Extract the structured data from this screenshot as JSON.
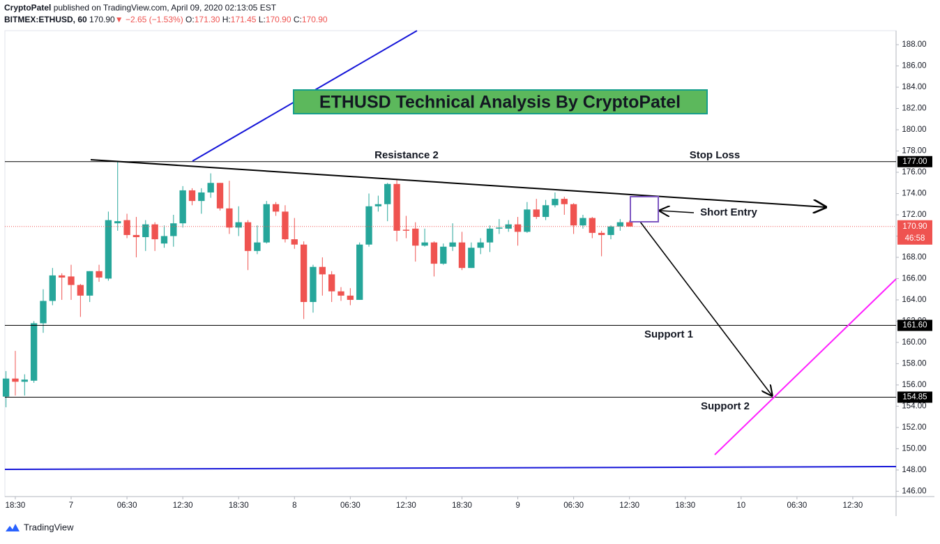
{
  "header": {
    "author": "CryptoPatel",
    "published": "published on TradingView.com, April 09, 2020 02:13:05 EST",
    "symbol": "BITMEX:ETHUSD, 60",
    "last": "170.90",
    "direction": "▼",
    "change": "−2.65 (−1.53%)",
    "o_label": "O:",
    "open": "171.30",
    "h_label": "H:",
    "high": "171.45",
    "l_label": "L:",
    "low": "170.90",
    "c_label": "C:",
    "close": "170.90"
  },
  "footer": {
    "brand": "TradingView"
  },
  "chart_data": {
    "type": "candlestick",
    "up_color": "#26a69a",
    "down_color": "#ef5350",
    "x": [
      -7,
      -6,
      -5,
      -4,
      -3,
      -2,
      -1,
      0,
      1,
      2,
      3,
      4,
      5,
      6,
      7,
      8,
      9,
      10,
      11,
      12,
      13,
      14,
      15,
      16,
      17,
      18,
      19,
      20,
      21,
      22,
      23,
      24,
      25,
      26,
      27,
      28,
      29,
      30,
      31,
      32,
      33,
      34,
      35,
      36,
      37,
      38,
      39,
      40,
      41,
      42,
      43,
      44,
      45,
      46,
      47,
      48,
      49,
      50,
      51,
      52,
      53,
      54,
      55,
      56,
      57,
      58,
      59,
      60
    ],
    "open": [
      154.9,
      156.6,
      156.3,
      156.4,
      161.8,
      163.9,
      166.3,
      166.2,
      165.4,
      164.4,
      166.7,
      166.0,
      171.2,
      171.5,
      170.1,
      169.9,
      171.1,
      169.3,
      170.0,
      171.2,
      174.3,
      173.3,
      174.1,
      175.0,
      172.6,
      170.8,
      171.3,
      168.6,
      169.4,
      173.0,
      172.3,
      169.7,
      169.2,
      163.8,
      167.1,
      166.4,
      164.8,
      164.4,
      164.0,
      169.2,
      172.8,
      173.0,
      174.9,
      170.6,
      170.7,
      169.1,
      169.4,
      167.4,
      169.0,
      169.4,
      167.0,
      168.9,
      169.4,
      170.7,
      170.7,
      171.1,
      170.4,
      172.5,
      171.8,
      172.9,
      173.5,
      173.0,
      171.0,
      171.7,
      170.3,
      170.1,
      170.9,
      171.3
    ],
    "high": [
      157.3,
      159.2,
      157.0,
      162.0,
      165.0,
      167.0,
      166.5,
      167.3,
      165.5,
      166.7,
      167.3,
      172.3,
      177.0,
      172.1,
      171.8,
      171.5,
      171.3,
      171.0,
      172.0,
      174.7,
      174.5,
      174.5,
      175.9,
      175.0,
      175.2,
      172.8,
      171.5,
      171.0,
      173.3,
      173.2,
      172.9,
      171.7,
      169.5,
      167.3,
      168.0,
      166.7,
      165.2,
      165.1,
      169.4,
      174.0,
      173.8,
      175.0,
      175.3,
      171.9,
      171.3,
      170.7,
      169.5,
      169.3,
      171.2,
      170.4,
      169.4,
      169.8,
      171.0,
      171.6,
      171.5,
      171.8,
      173.2,
      173.5,
      173.4,
      174.1,
      173.7,
      173.1,
      172.0,
      171.8,
      170.5,
      171.0,
      171.6,
      171.45
    ],
    "low": [
      153.9,
      155.0,
      155.0,
      156.2,
      160.9,
      163.5,
      164.0,
      164.0,
      162.4,
      163.8,
      165.7,
      165.8,
      170.5,
      169.8,
      168.0,
      168.6,
      168.6,
      168.9,
      169.0,
      170.8,
      172.9,
      172.1,
      173.6,
      172.4,
      170.2,
      170.0,
      166.8,
      168.3,
      169.3,
      171.9,
      169.4,
      168.8,
      162.2,
      162.8,
      164.4,
      163.8,
      163.9,
      163.5,
      164.0,
      169.0,
      172.3,
      171.4,
      169.5,
      169.8,
      167.6,
      169.0,
      166.2,
      167.3,
      168.6,
      166.8,
      167.0,
      168.3,
      168.5,
      170.2,
      170.4,
      169.1,
      170.3,
      171.6,
      171.5,
      172.7,
      172.0,
      170.2,
      170.7,
      169.8,
      168.1,
      169.7,
      170.5,
      170.9
    ],
    "close": [
      156.6,
      156.3,
      156.5,
      161.8,
      163.9,
      166.3,
      166.1,
      165.4,
      164.4,
      166.7,
      166.1,
      171.5,
      171.4,
      170.1,
      169.9,
      171.1,
      169.7,
      170.0,
      171.2,
      174.3,
      173.3,
      174.1,
      175.0,
      172.6,
      170.8,
      171.3,
      168.6,
      169.4,
      173.0,
      172.3,
      169.7,
      169.2,
      163.8,
      167.1,
      166.4,
      164.8,
      164.4,
      164.0,
      169.2,
      172.8,
      173.0,
      174.9,
      170.5,
      170.5,
      169.1,
      169.4,
      167.4,
      169.0,
      169.4,
      167.0,
      168.9,
      169.4,
      170.7,
      170.8,
      171.1,
      170.4,
      172.5,
      171.8,
      172.9,
      173.5,
      173.0,
      171.0,
      171.7,
      170.3,
      170.1,
      170.9,
      171.3,
      170.9
    ],
    "xlim": [
      -7.12,
      88.65
    ],
    "xticks": [
      {
        "value": -6,
        "label": "18:30"
      },
      {
        "value": 0,
        "label": "7"
      },
      {
        "value": 6,
        "label": "06:30"
      },
      {
        "value": 12,
        "label": "12:30"
      },
      {
        "value": 18,
        "label": "18:30"
      },
      {
        "value": 24,
        "label": "8"
      },
      {
        "value": 30,
        "label": "06:30"
      },
      {
        "value": 36,
        "label": "12:30"
      },
      {
        "value": 42,
        "label": "18:30"
      },
      {
        "value": 48,
        "label": "9"
      },
      {
        "value": 54,
        "label": "06:30"
      },
      {
        "value": 60,
        "label": "12:30"
      },
      {
        "value": 66,
        "label": "18:30"
      },
      {
        "value": 72,
        "label": "10"
      },
      {
        "value": 78,
        "label": "06:30"
      },
      {
        "value": 84,
        "label": "12:30"
      }
    ],
    "ylim": [
      145.5,
      189.25
    ],
    "yticks": [
      {
        "value": 146,
        "label": "146.00"
      },
      {
        "value": 148,
        "label": "148.00"
      },
      {
        "value": 150,
        "label": "150.00"
      },
      {
        "value": 152,
        "label": "152.00"
      },
      {
        "value": 154,
        "label": "154.00"
      },
      {
        "value": 156,
        "label": "156.00"
      },
      {
        "value": 158,
        "label": "158.00"
      },
      {
        "value": 160,
        "label": "160.00"
      },
      {
        "value": 162,
        "label": "162.00"
      },
      {
        "value": 164,
        "label": "164.00"
      },
      {
        "value": 166,
        "label": "166.00"
      },
      {
        "value": 168,
        "label": "168.00"
      },
      {
        "value": 170,
        "label": "170.00"
      },
      {
        "value": 172,
        "label": "172.00"
      },
      {
        "value": 174,
        "label": "174.00"
      },
      {
        "value": 176,
        "label": "176.00"
      },
      {
        "value": 178,
        "label": "178.00"
      },
      {
        "value": 180,
        "label": "180.00"
      },
      {
        "value": 182,
        "label": "182.00"
      },
      {
        "value": 184,
        "label": "184.00"
      },
      {
        "value": 186,
        "label": "186.00"
      },
      {
        "value": 188,
        "label": "188.00"
      }
    ],
    "grid": false,
    "levels": [
      {
        "value": 177,
        "label": "177.00"
      },
      {
        "value": 161.6,
        "label": "161.60"
      },
      {
        "value": 154.85,
        "label": "154.85"
      }
    ],
    "last_price": {
      "value": 170.9,
      "label": "170.90",
      "countdown": "46:58",
      "color": "#ef5350"
    },
    "annotations": {
      "title": "ETHUSD Technical Analysis By CryptoPatel",
      "resistance": "Resistance 2",
      "stop": "Stop Loss",
      "support1": "Support 1",
      "support2": "Support 2",
      "entry": "Short Entry"
    }
  }
}
